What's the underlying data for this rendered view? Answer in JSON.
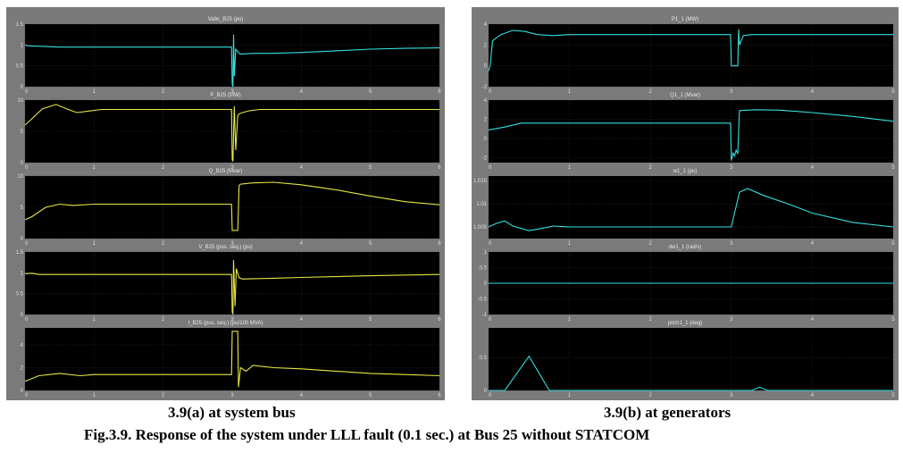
{
  "captions": {
    "left": "3.9(a) at system bus",
    "right": "3.9(b) at generators",
    "figure": "Fig.3.9. Response of the system under LLL fault (0.1 sec.) at Bus 25 without STATCOM"
  },
  "colors": {
    "frame": "#7a7a7a",
    "plot_bg": "#000000",
    "grid": "#333333",
    "tick_text": "#dddddd",
    "title_text": "#e8e8e8",
    "cyan": "#33e0e0",
    "yellow": "#e8e840"
  },
  "chart_data": [
    {
      "type": "line",
      "panel": "left",
      "title": "Vabc_B25 (pu)",
      "color": "cyan",
      "x_ticks": [
        "0",
        "1",
        "2",
        "3",
        "4",
        "5",
        "6"
      ],
      "y_ticks": [
        "0",
        "0.5",
        "1",
        "1.5"
      ],
      "xlim": [
        0,
        6
      ],
      "ylim": [
        0,
        1.5
      ],
      "series": [
        {
          "x": [
            0,
            0.05,
            0.5,
            1,
            2,
            2.99,
            3.0,
            3.01,
            3.02,
            3.03,
            3.05,
            3.1,
            3.12,
            3.3,
            3.6,
            4,
            4.5,
            5,
            5.5,
            6
          ],
          "y": [
            1.0,
            0.98,
            0.95,
            0.95,
            0.95,
            0.95,
            0.05,
            0.0,
            1.25,
            0.25,
            0.9,
            0.8,
            0.78,
            0.8,
            0.8,
            0.82,
            0.86,
            0.9,
            0.92,
            0.93
          ]
        }
      ]
    },
    {
      "type": "line",
      "panel": "left",
      "title": "P_B25 (MW)",
      "color": "yellow",
      "x_ticks": [
        "0",
        "1",
        "2",
        "3",
        "4",
        "5",
        "6"
      ],
      "y_ticks": [
        "0",
        "5",
        "10"
      ],
      "xlim": [
        0,
        6
      ],
      "ylim": [
        0,
        10
      ],
      "series": [
        {
          "x": [
            0,
            0.1,
            0.25,
            0.45,
            0.6,
            0.75,
            0.9,
            1.1,
            1.5,
            2,
            2.99,
            3.0,
            3.01,
            3.03,
            3.05,
            3.08,
            3.1,
            3.15,
            3.25,
            3.4,
            3.6,
            4,
            5,
            6
          ],
          "y": [
            6,
            7,
            8.6,
            9.3,
            8.6,
            8.0,
            8.2,
            8.5,
            8.5,
            8.5,
            8.5,
            0.5,
            0.2,
            9.0,
            2.0,
            7.5,
            7.8,
            8.0,
            8.3,
            8.5,
            8.5,
            8.5,
            8.5,
            8.5
          ]
        }
      ]
    },
    {
      "type": "line",
      "panel": "left",
      "title": "Q_B25 (Mvar)",
      "color": "yellow",
      "x_ticks": [
        "0",
        "1",
        "2",
        "3",
        "4",
        "5",
        "6"
      ],
      "y_ticks": [
        "0",
        "5",
        "10"
      ],
      "xlim": [
        0,
        6
      ],
      "ylim": [
        0,
        10
      ],
      "series": [
        {
          "x": [
            0,
            0.1,
            0.3,
            0.5,
            0.7,
            1,
            1.5,
            2,
            2.99,
            3.0,
            3.08,
            3.1,
            3.12,
            3.3,
            3.6,
            4,
            4.5,
            5,
            5.5,
            6
          ],
          "y": [
            3.0,
            3.5,
            5.0,
            5.5,
            5.3,
            5.5,
            5.5,
            5.5,
            5.5,
            1.3,
            1.3,
            8.5,
            8.7,
            8.9,
            9.0,
            8.6,
            7.8,
            6.8,
            5.9,
            5.4
          ]
        }
      ]
    },
    {
      "type": "line",
      "panel": "left",
      "title": "V_B25 (pos. seq.) (pu)",
      "color": "yellow",
      "x_ticks": [
        "0",
        "1",
        "2",
        "3",
        "4",
        "5",
        "6"
      ],
      "y_ticks": [
        "0",
        "0.5",
        "1",
        "1.5"
      ],
      "xlim": [
        0,
        6
      ],
      "ylim": [
        0,
        1.5
      ],
      "series": [
        {
          "x": [
            0,
            0.1,
            0.2,
            0.5,
            1,
            2,
            2.99,
            3.0,
            3.01,
            3.02,
            3.04,
            3.06,
            3.1,
            3.15,
            3.3,
            3.6,
            4,
            5,
            6
          ],
          "y": [
            0.98,
            0.99,
            0.96,
            0.96,
            0.96,
            0.96,
            0.96,
            0.05,
            0.02,
            1.3,
            0.2,
            1.1,
            0.88,
            0.85,
            0.86,
            0.87,
            0.89,
            0.93,
            0.96
          ]
        }
      ]
    },
    {
      "type": "line",
      "panel": "left",
      "title": "I_B25 (pos. seq.) (pu/100 MVA)",
      "color": "yellow",
      "x_ticks": [
        "0",
        "1",
        "2",
        "3",
        "4",
        "5",
        "6"
      ],
      "y_ticks": [
        "0",
        "2",
        "4"
      ],
      "xlim": [
        0,
        6
      ],
      "ylim": [
        0,
        5.5
      ],
      "series": [
        {
          "x": [
            0,
            0.2,
            0.5,
            0.8,
            1,
            1.5,
            2,
            2.99,
            3.0,
            3.08,
            3.09,
            3.12,
            3.2,
            3.3,
            3.6,
            4,
            4.5,
            5,
            5.5,
            6
          ],
          "y": [
            0.8,
            1.3,
            1.5,
            1.3,
            1.4,
            1.4,
            1.4,
            1.4,
            5.2,
            5.2,
            0.3,
            2.0,
            1.7,
            2.2,
            2.0,
            1.9,
            1.7,
            1.5,
            1.4,
            1.3
          ]
        }
      ]
    },
    {
      "type": "line",
      "panel": "right",
      "title": "P1_1 (MW)",
      "color": "cyan",
      "x_ticks": [
        "0",
        "1",
        "2",
        "3",
        "4",
        "5"
      ],
      "y_ticks": [
        "-2",
        "0",
        "2",
        "4"
      ],
      "xlim": [
        0,
        5
      ],
      "ylim": [
        -2,
        4
      ],
      "series": [
        {
          "x": [
            0,
            0.02,
            0.05,
            0.15,
            0.3,
            0.45,
            0.6,
            0.8,
            1,
            1.5,
            2,
            2.99,
            3.0,
            3.08,
            3.09,
            3.1,
            3.15,
            3.25,
            3.5,
            4,
            5
          ],
          "y": [
            -0.5,
            0.0,
            2.4,
            3.0,
            3.4,
            3.3,
            3.0,
            2.9,
            3.0,
            3.0,
            3.0,
            3.0,
            0.0,
            0.0,
            3.5,
            2.0,
            2.9,
            3.0,
            3.0,
            3.0,
            3.0
          ]
        }
      ]
    },
    {
      "type": "line",
      "panel": "right",
      "title": "Q1_1 (Mvar)",
      "color": "cyan",
      "x_ticks": [
        "0",
        "1",
        "2",
        "3",
        "4",
        "5"
      ],
      "y_ticks": [
        "-2",
        "0",
        "2",
        "4"
      ],
      "xlim": [
        0,
        5
      ],
      "ylim": [
        -2.5,
        4
      ],
      "series": [
        {
          "x": [
            0,
            0.2,
            0.4,
            0.6,
            1,
            1.5,
            2,
            2.95,
            2.99,
            3.0,
            3.02,
            3.04,
            3.06,
            3.08,
            3.1,
            3.3,
            3.6,
            4,
            4.5,
            5
          ],
          "y": [
            0.9,
            1.2,
            1.6,
            1.6,
            1.6,
            1.6,
            1.6,
            1.6,
            1.6,
            -2.3,
            -1.5,
            -1.8,
            -1.2,
            -1.6,
            2.9,
            3.0,
            2.95,
            2.7,
            2.3,
            1.8
          ]
        }
      ]
    },
    {
      "type": "line",
      "panel": "right",
      "title": "w1_1 (pu)",
      "color": "cyan",
      "x_ticks": [
        "0",
        "1",
        "2",
        "3",
        "4",
        "5"
      ],
      "y_ticks": [
        "1.005",
        "1.01",
        "1.015"
      ],
      "xlim": [
        0,
        5
      ],
      "ylim": [
        1.0025,
        1.016
      ],
      "series": [
        {
          "x": [
            0,
            0.1,
            0.2,
            0.3,
            0.5,
            0.6,
            0.8,
            1,
            1.5,
            2,
            2.99,
            3.0,
            3.1,
            3.2,
            3.4,
            3.7,
            4,
            4.5,
            5
          ],
          "y": [
            1.005,
            1.0058,
            1.0063,
            1.0052,
            1.0042,
            1.0045,
            1.0052,
            1.005,
            1.005,
            1.005,
            1.005,
            1.005,
            1.0125,
            1.0133,
            1.0118,
            1.01,
            1.008,
            1.006,
            1.005
          ]
        }
      ]
    },
    {
      "type": "line",
      "panel": "right",
      "title": "dw1_1 (rad/s)",
      "color": "cyan",
      "x_ticks": [
        "0",
        "1",
        "2",
        "3",
        "4",
        "5"
      ],
      "y_ticks": [
        "-1",
        "-0.5",
        "0",
        "0.5",
        "1"
      ],
      "xlim": [
        0,
        5
      ],
      "ylim": [
        -1,
        1
      ],
      "series": [
        {
          "x": [
            0,
            5
          ],
          "y": [
            0,
            0
          ]
        }
      ]
    },
    {
      "type": "line",
      "panel": "right",
      "title": "pitch1_1 (deg)",
      "color": "cyan",
      "x_ticks": [
        "0",
        "1",
        "2",
        "3",
        "4",
        "5"
      ],
      "y_ticks": [
        "0",
        "0.5"
      ],
      "xlim": [
        0,
        5
      ],
      "ylim": [
        0,
        0.95
      ],
      "series": [
        {
          "x": [
            0,
            0.2,
            0.5,
            0.75,
            1,
            2,
            3.25,
            3.35,
            3.45,
            5
          ],
          "y": [
            0,
            0,
            0.52,
            0,
            0,
            0,
            0,
            0.05,
            0,
            0
          ]
        }
      ]
    }
  ]
}
